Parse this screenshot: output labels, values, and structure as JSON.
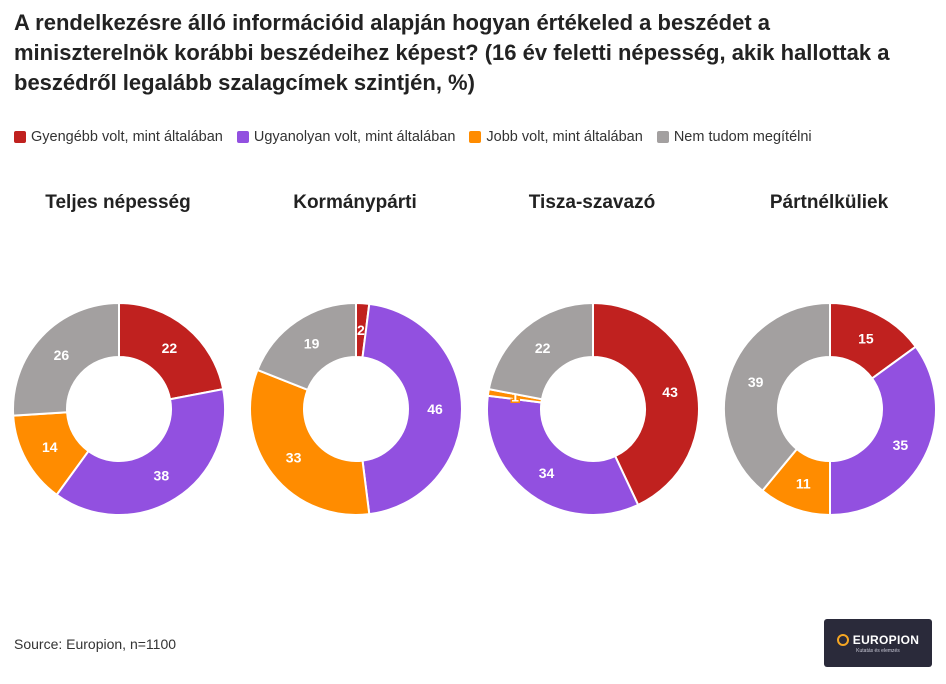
{
  "title": "A rendelkezésre álló információid alapján hogyan értékeled a beszédet a miniszterelnök korábbi beszédeihez képest? (16 év feletti népesség, akik hallottak a beszédről legalább szalagcímek szintjén, %)",
  "legend": [
    {
      "label": "Gyengébb volt, mint általában",
      "color": "#c0211f"
    },
    {
      "label": "Ugyanolyan volt, mint általában",
      "color": "#9250e0"
    },
    {
      "label": "Jobb volt, mint általában",
      "color": "#ff8c00"
    },
    {
      "label": "Nem tudom megítélni",
      "color": "#a3a0a0"
    }
  ],
  "chart_data": [
    {
      "type": "pie",
      "title": "Teljes népesség",
      "categories": [
        "Gyengébb volt, mint általában",
        "Ugyanolyan volt, mint általában",
        "Jobb volt, mint általában",
        "Nem tudom megítélni"
      ],
      "values": [
        22,
        38,
        14,
        26
      ]
    },
    {
      "type": "pie",
      "title": "Kormánypárti",
      "categories": [
        "Gyengébb volt, mint általában",
        "Ugyanolyan volt, mint általában",
        "Jobb volt, mint általában",
        "Nem tudom megítélni"
      ],
      "values": [
        2,
        46,
        33,
        19
      ]
    },
    {
      "type": "pie",
      "title": "Tisza-szavazó",
      "categories": [
        "Gyengébb volt, mint általában",
        "Ugyanolyan volt, mint általában",
        "Jobb volt, mint általában",
        "Nem tudom megítélni"
      ],
      "values": [
        43,
        34,
        1,
        22
      ]
    },
    {
      "type": "pie",
      "title": "Pártnélküliek",
      "categories": [
        "Gyengébb volt, mint általában",
        "Ugyanolyan volt, mint általában",
        "Jobb volt, mint általában",
        "Nem tudom megítélni"
      ],
      "values": [
        15,
        35,
        11,
        39
      ]
    }
  ],
  "source": "Source: Europion, n=1100",
  "logo": {
    "name": "EUROPION",
    "tagline": "Kutatás és elemzés"
  }
}
